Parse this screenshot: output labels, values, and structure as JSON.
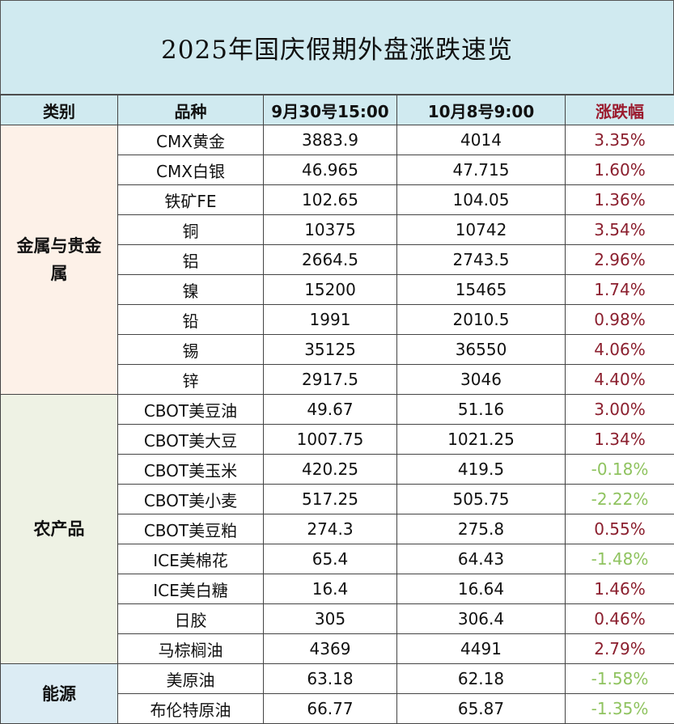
{
  "title": "2025年国庆假期外盘涨跌速览",
  "headers": [
    "类别",
    "品种",
    "9月30号15:00",
    "10月8号9:00",
    "涨跌幅"
  ],
  "colors": {
    "up": "#8b1f2e",
    "down": "#8fc35f",
    "header_bg": "#d0eaf0",
    "metal_bg": "#fdf1e8",
    "agri_bg": "#eef2e4",
    "energy_bg": "#dcecf4"
  },
  "groups": [
    {
      "category": "金属与贵金属",
      "rows": [
        {
          "name": "CMX黄金",
          "before": "3883.9",
          "after": "4014",
          "change": "3.35%"
        },
        {
          "name": "CMX白银",
          "before": "46.965",
          "after": "47.715",
          "change": "1.60%"
        },
        {
          "name": "铁矿FE",
          "before": "102.65",
          "after": "104.05",
          "change": "1.36%"
        },
        {
          "name": "铜",
          "before": "10375",
          "after": "10742",
          "change": "3.54%"
        },
        {
          "name": "铝",
          "before": "2664.5",
          "after": "2743.5",
          "change": "2.96%"
        },
        {
          "name": "镍",
          "before": "15200",
          "after": "15465",
          "change": "1.74%"
        },
        {
          "name": "铅",
          "before": "1991",
          "after": "2010.5",
          "change": "0.98%"
        },
        {
          "name": "锡",
          "before": "35125",
          "after": "36550",
          "change": "4.06%"
        },
        {
          "name": "锌",
          "before": "2917.5",
          "after": "3046",
          "change": "4.40%"
        }
      ]
    },
    {
      "category": "农产品",
      "rows": [
        {
          "name": "CBOT美豆油",
          "before": "49.67",
          "after": "51.16",
          "change": "3.00%"
        },
        {
          "name": "CBOT美大豆",
          "before": "1007.75",
          "after": "1021.25",
          "change": "1.34%"
        },
        {
          "name": "CBOT美玉米",
          "before": "420.25",
          "after": "419.5",
          "change": "-0.18%"
        },
        {
          "name": "CBOT美小麦",
          "before": "517.25",
          "after": "505.75",
          "change": "-2.22%"
        },
        {
          "name": "CBOT美豆粕",
          "before": "274.3",
          "after": "275.8",
          "change": "0.55%"
        },
        {
          "name": "ICE美棉花",
          "before": "65.4",
          "after": "64.43",
          "change": "-1.48%"
        },
        {
          "name": "ICE美白糖",
          "before": "16.4",
          "after": "16.64",
          "change": "1.46%"
        },
        {
          "name": "日胶",
          "before": "305",
          "after": "306.4",
          "change": "0.46%"
        },
        {
          "name": "马棕榈油",
          "before": "4369",
          "after": "4491",
          "change": "2.79%"
        }
      ]
    },
    {
      "category": "能源",
      "rows": [
        {
          "name": "美原油",
          "before": "63.18",
          "after": "62.18",
          "change": "-1.58%"
        },
        {
          "name": "布伦特原油",
          "before": "66.77",
          "after": "65.87",
          "change": "-1.35%"
        }
      ]
    }
  ]
}
